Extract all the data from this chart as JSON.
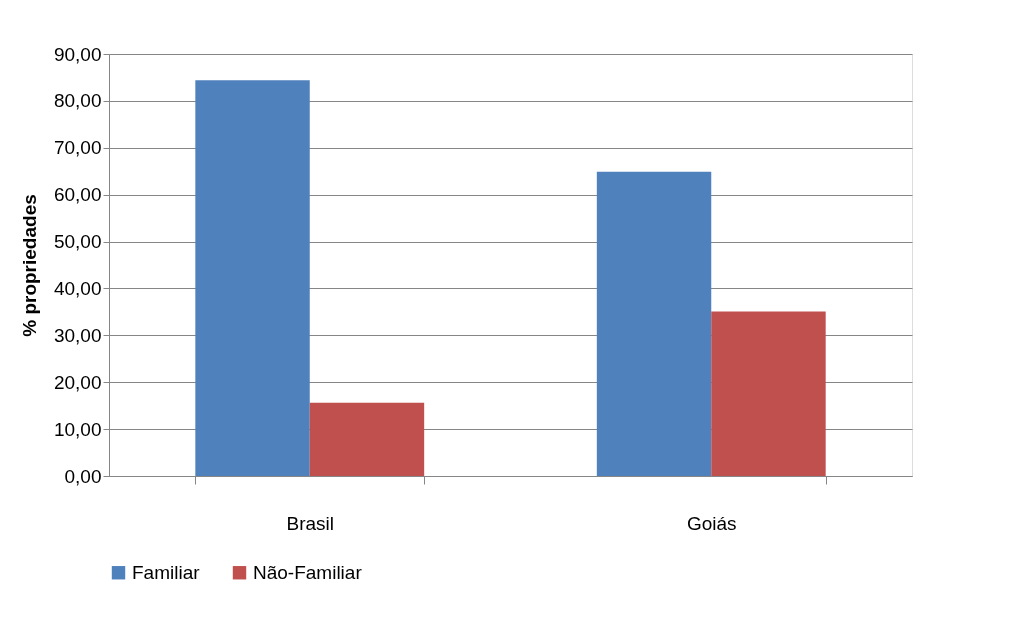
{
  "chart_data": {
    "type": "bar",
    "ylabel": "% propriedades",
    "categories": [
      "Brasil",
      "Goiás"
    ],
    "series": [
      {
        "name": "Familiar",
        "color": "#4f81bd",
        "values": [
          84.4,
          64.9
        ]
      },
      {
        "name": "Não-Familiar",
        "color": "#c0504d",
        "values": [
          15.6,
          35.1
        ]
      }
    ],
    "ylim": [
      0,
      90
    ],
    "yticks": [
      {
        "value": 0,
        "label": "0,00"
      },
      {
        "value": 10,
        "label": "10,00"
      },
      {
        "value": 20,
        "label": "20,00"
      },
      {
        "value": 30,
        "label": "30,00"
      },
      {
        "value": 40,
        "label": "40,00"
      },
      {
        "value": 50,
        "label": "50,00"
      },
      {
        "value": 60,
        "label": "60,00"
      },
      {
        "value": 70,
        "label": "70,00"
      },
      {
        "value": 80,
        "label": "80,00"
      },
      {
        "value": 90,
        "label": "90,00"
      }
    ],
    "grid": "y",
    "legend": "bottom"
  }
}
